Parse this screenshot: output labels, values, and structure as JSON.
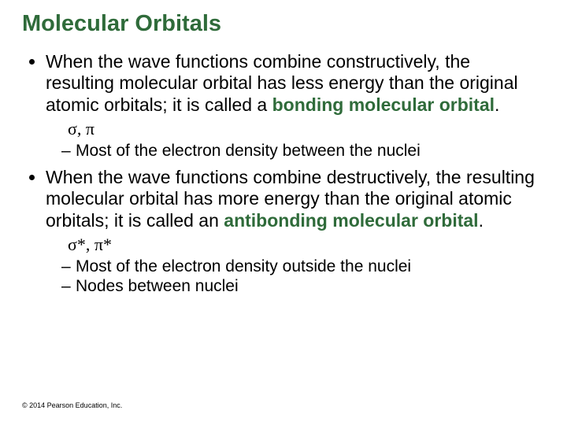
{
  "title": {
    "text": "Molecular Orbitals",
    "color": "#2f6b3a"
  },
  "bullets": [
    {
      "lead": "When the wave functions combine constructively, the resulting molecular orbital has less energy than the original atomic orbitals; it is called a ",
      "emph": "bonding molecular orbital",
      "emph_color": "#2f6b3a",
      "trail": ".",
      "symbols": "σ, π",
      "sub": [
        "Most of the electron density between the nuclei"
      ]
    },
    {
      "lead": "When the wave functions combine destructively, the resulting molecular orbital has more energy than the original atomic orbitals; it is called an ",
      "emph": "antibonding molecular orbital",
      "emph_color": "#2f6b3a",
      "trail": ".",
      "symbols": "σ*, π*",
      "sub": [
        "Most of the electron density outside the nuclei",
        "Nodes between nuclei"
      ]
    }
  ],
  "copyright": "© 2014 Pearson Education, Inc."
}
